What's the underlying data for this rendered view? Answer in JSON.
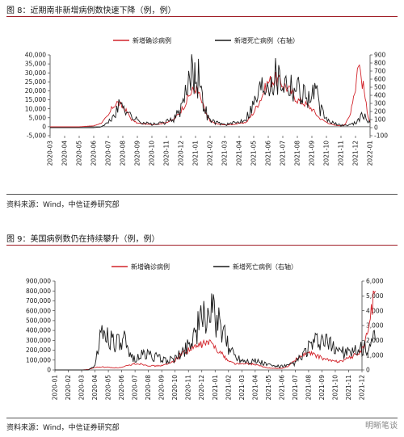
{
  "figure8": {
    "title": "图 8：近期南非新增病例数快速下降（例，例）",
    "source": "资料来源：Wind，中信证券研究部"
  },
  "figure9": {
    "title": "图 9：美国病例数仍在持续攀升（例，例）",
    "source": "资料来源：Wind，中信证券研究部"
  },
  "watermark": "明晰笔谈",
  "colors": {
    "cases": "#d2232a",
    "deaths": "#1a1a1a",
    "accent": "#a01d26"
  },
  "chart_data": [
    {
      "type": "line",
      "legend": [
        "新增确诊病例",
        "新增死亡病例（右轴）"
      ],
      "legend_position": "top-center",
      "x_ticks": [
        "2020-03",
        "2020-04",
        "2020-05",
        "2020-06",
        "2020-07",
        "2020-08",
        "2020-09",
        "2020-10",
        "2020-11",
        "2020-12",
        "2021-01",
        "2021-02",
        "2021-03",
        "2021-04",
        "2021-05",
        "2021-06",
        "2021-07",
        "2021-08",
        "2021-09",
        "2021-10",
        "2021-11",
        "2021-12",
        "2022-01"
      ],
      "y_left_ticks": [
        "40,000",
        "35,000",
        "30,000",
        "25,000",
        "20,000",
        "15,000",
        "10,000",
        "5,000",
        "0",
        "-5,000"
      ],
      "y_left_range": [
        -5000,
        40000
      ],
      "y_right_ticks": [
        "900",
        "800",
        "700",
        "600",
        "500",
        "400",
        "300",
        "200",
        "100",
        "0",
        "-100"
      ],
      "y_right_range": [
        -100,
        900
      ],
      "grid": false,
      "series": [
        {
          "name": "新增确诊病例",
          "axis": "left",
          "color": "#d2232a",
          "x": [
            0,
            2,
            3,
            3.5,
            4,
            4.3,
            4.6,
            5,
            5.3,
            5.6,
            6,
            6.5,
            7,
            7.5,
            8,
            8.5,
            9,
            9.3,
            9.6,
            9.8,
            10,
            10.2,
            10.5,
            10.8,
            11,
            11.5,
            12,
            12.5,
            13,
            13.5,
            14,
            14.5,
            15,
            15.5,
            16,
            16.5,
            17,
            17.5,
            18,
            18.5,
            19,
            19.5,
            20,
            20.3,
            20.6,
            20.8,
            21,
            21.2,
            21.4,
            21.6,
            21.8,
            22
          ],
          "y": [
            0,
            0,
            500,
            2000,
            6000,
            11000,
            13500,
            11000,
            8000,
            4000,
            2000,
            1500,
            1200,
            1500,
            2500,
            4000,
            9000,
            13000,
            18000,
            20000,
            21500,
            19000,
            12000,
            6000,
            3000,
            1500,
            1000,
            1200,
            1800,
            2500,
            8000,
            16000,
            25000,
            26500,
            24000,
            20000,
            15000,
            13000,
            10000,
            5000,
            2500,
            900,
            500,
            1500,
            6000,
            15000,
            22000,
            37500,
            27000,
            20000,
            8000,
            3000
          ]
        },
        {
          "name": "新增死亡病例（右轴）",
          "axis": "right",
          "color": "#1a1a1a",
          "x": [
            0,
            3,
            3.5,
            4,
            4.5,
            4.8,
            5,
            5.2,
            5.5,
            6,
            6.5,
            7,
            7.5,
            8,
            8.5,
            9,
            9.3,
            9.6,
            9.8,
            9.9,
            10,
            10.1,
            10.2,
            10.4,
            10.6,
            10.8,
            11,
            11.5,
            12,
            12.5,
            13,
            13.5,
            14,
            14.5,
            15,
            15.5,
            16,
            16.5,
            17,
            17.5,
            18,
            18.2,
            18.5,
            19,
            19.5,
            20,
            20.5,
            21,
            21.2,
            21.5,
            21.8,
            22
          ],
          "y": [
            0,
            0,
            10,
            60,
            180,
            280,
            320,
            240,
            150,
            90,
            60,
            40,
            50,
            70,
            110,
            220,
            380,
            600,
            830,
            620,
            860,
            500,
            700,
            380,
            300,
            150,
            90,
            60,
            40,
            50,
            70,
            130,
            300,
            500,
            620,
            650,
            600,
            550,
            500,
            420,
            350,
            520,
            250,
            100,
            50,
            30,
            30,
            60,
            120,
            150,
            100,
            60
          ]
        }
      ]
    },
    {
      "type": "line",
      "legend": [
        "新增确诊病例",
        "新增死亡病例（右轴）"
      ],
      "legend_position": "top-center",
      "x_ticks": [
        "2020-01",
        "2020-02",
        "2020-03",
        "2020-04",
        "2020-05",
        "2020-06",
        "2020-07",
        "2020-08",
        "2020-09",
        "2020-10",
        "2020-11",
        "2020-12",
        "2021-01",
        "2021-02",
        "2021-03",
        "2021-04",
        "2021-05",
        "2021-06",
        "2021-07",
        "2021-08",
        "2021-09",
        "2021-10",
        "2021-11",
        "2021-12"
      ],
      "y_left_ticks": [
        "900,000",
        "800,000",
        "700,000",
        "600,000",
        "500,000",
        "400,000",
        "300,000",
        "200,000",
        "100,000",
        "0"
      ],
      "y_left_range": [
        0,
        900000
      ],
      "y_right_ticks": [
        "6,000",
        "5,000",
        "4,000",
        "3,000",
        "2,000",
        "1,000",
        "0"
      ],
      "y_right_range": [
        0,
        6000
      ],
      "grid": false,
      "series": [
        {
          "name": "新增确诊病例",
          "axis": "left",
          "color": "#d2232a",
          "x": [
            0,
            2,
            2.5,
            3,
            3.5,
            4,
            4.5,
            5,
            5.5,
            6,
            6.5,
            7,
            7.5,
            8,
            8.5,
            9,
            9.5,
            10,
            10.5,
            11,
            11.5,
            12,
            12.3,
            12.6,
            13,
            13.5,
            14,
            14.5,
            15,
            15.5,
            16,
            16.5,
            17,
            17.5,
            18,
            18.5,
            19,
            19.5,
            20,
            20.5,
            21,
            21.5,
            22,
            22.5,
            23,
            23.4,
            23.7,
            24
          ],
          "y": [
            0,
            0,
            5000,
            25000,
            30000,
            27000,
            22000,
            25000,
            45000,
            65000,
            60000,
            45000,
            40000,
            45000,
            60000,
            100000,
            170000,
            200000,
            230000,
            260000,
            280000,
            240000,
            190000,
            150000,
            90000,
            65000,
            60000,
            65000,
            55000,
            35000,
            20000,
            15000,
            15000,
            40000,
            100000,
            150000,
            170000,
            150000,
            120000,
            100000,
            85000,
            95000,
            120000,
            150000,
            200000,
            350000,
            600000,
            800000
          ]
        },
        {
          "name": "新增死亡病例（右轴）",
          "axis": "right",
          "color": "#1a1a1a",
          "x": [
            0,
            2,
            2.5,
            3,
            3.3,
            3.6,
            4,
            4.5,
            5,
            5.2,
            5.5,
            6,
            6.5,
            7,
            7.5,
            8,
            8.5,
            9,
            9.5,
            10,
            10.5,
            11,
            11.3,
            11.6,
            12,
            12.2,
            12.5,
            13,
            13.5,
            14,
            14.5,
            15,
            15.5,
            16,
            16.5,
            17,
            17.5,
            18,
            18.5,
            19,
            19.5,
            20,
            20.5,
            21,
            21.5,
            22,
            22.5,
            23,
            23.5,
            24
          ],
          "y": [
            0,
            0,
            0,
            300,
            1800,
            2600,
            2300,
            2000,
            1500,
            2000,
            1000,
            800,
            1000,
            1100,
            900,
            700,
            650,
            750,
            1100,
            1800,
            2600,
            3300,
            3800,
            4000,
            3600,
            3200,
            2600,
            1600,
            1000,
            700,
            650,
            600,
            500,
            350,
            250,
            250,
            300,
            500,
            900,
            1500,
            1800,
            2000,
            1700,
            1600,
            1300,
            1100,
            1200,
            1400,
            1600,
            2000
          ]
        }
      ]
    }
  ]
}
